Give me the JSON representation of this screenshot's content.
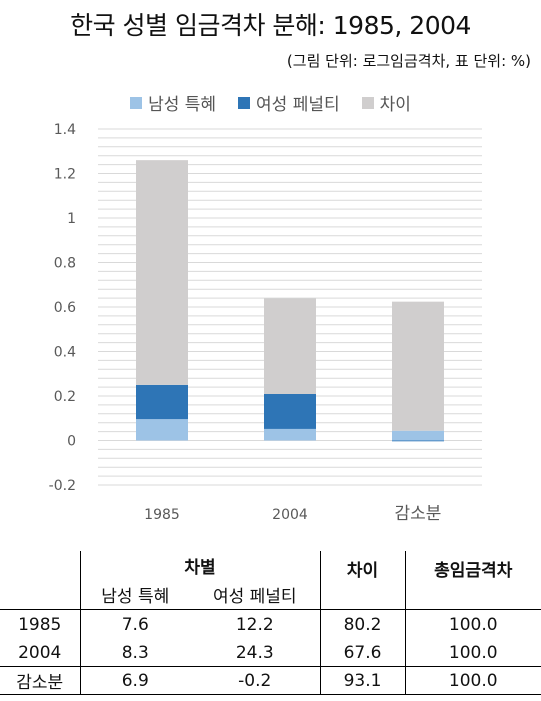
{
  "title": "한국 성별 임금격차 분해: 1985, 2004",
  "subtitle": "(그림 단위: 로그임금격차, 표 단위: %)",
  "colors": {
    "male": "#9DC3E6",
    "female": "#2E75B6",
    "diff": "#D0CECE",
    "grid": "#D9D9D9",
    "axis": "#595959"
  },
  "chart_data": {
    "type": "bar",
    "stacked": true,
    "categories": [
      "1985",
      "2004",
      "감소분"
    ],
    "series": [
      {
        "name": "남성 특혜",
        "color": "#9DC3E6",
        "values": [
          0.096,
          0.052,
          0.044
        ]
      },
      {
        "name": "여성 페널티",
        "color": "#2E75B6",
        "values": [
          0.154,
          0.157,
          -0.003
        ]
      },
      {
        "name": "차이",
        "color": "#D0CECE",
        "values": [
          1.01,
          0.43,
          0.58
        ]
      }
    ],
    "yticks": [
      "1.4",
      "1.2",
      "1",
      "0.8",
      "0.6",
      "0.4",
      "0.2",
      "0",
      "-0.2"
    ],
    "ylim": [
      -0.2,
      1.4
    ],
    "grid": true,
    "legend": "top"
  },
  "table": {
    "header_group": "차별",
    "header_male": "남성 특혜",
    "header_female": "여성 페널티",
    "header_diff": "차이",
    "header_total": "총임금격차",
    "rows": [
      {
        "label": "1985",
        "male": "7.6",
        "female": "12.2",
        "diff": "80.2",
        "total": "100.0"
      },
      {
        "label": "2004",
        "male": "8.3",
        "female": "24.3",
        "diff": "67.6",
        "total": "100.0"
      },
      {
        "label": "감소분",
        "male": "6.9",
        "female": "-0.2",
        "diff": "93.1",
        "total": "100.0"
      }
    ]
  }
}
